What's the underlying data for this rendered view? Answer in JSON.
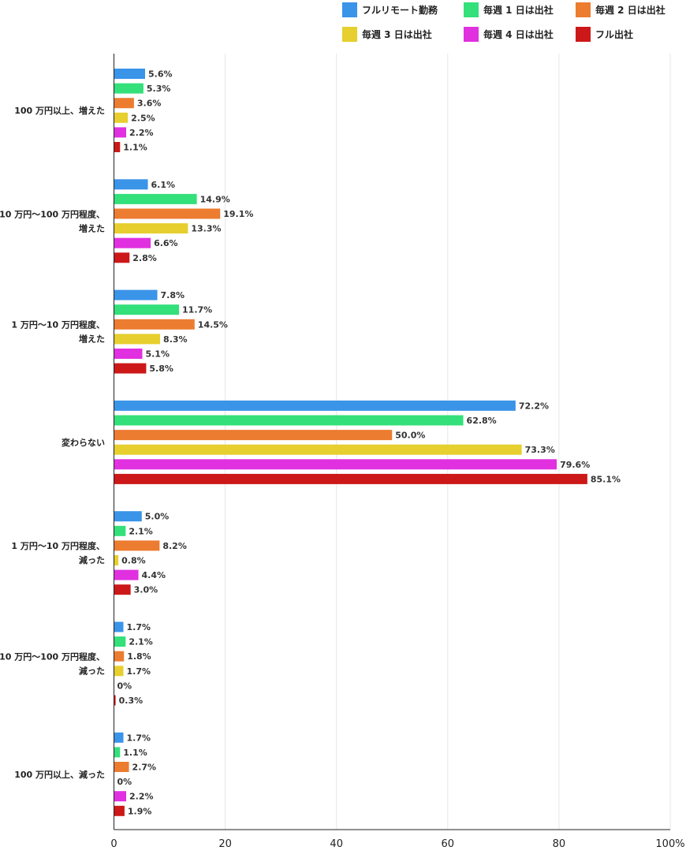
{
  "chart_data": {
    "type": "bar",
    "orientation": "horizontal",
    "categories": [
      [
        "100 万円以上、増えた"
      ],
      [
        "10 万円〜100 万円程度、",
        "増えた"
      ],
      [
        "1 万円〜10 万円程度、",
        "増えた"
      ],
      [
        "変わらない"
      ],
      [
        "1 万円〜10 万円程度、",
        "減った"
      ],
      [
        "10 万円〜100 万円程度、",
        "減った"
      ],
      [
        "100 万円以上、減った"
      ]
    ],
    "series": [
      {
        "name": "フルリモート勤務",
        "color": "#3a94e8",
        "values": [
          5.6,
          6.1,
          7.8,
          72.2,
          5.0,
          1.7,
          1.7
        ],
        "labels": [
          "5.6%",
          "6.1%",
          "7.8%",
          "72.2%",
          "5.0%",
          "1.7%",
          "1.7%"
        ]
      },
      {
        "name": "毎週 1 日は出社",
        "color": "#33e07a",
        "values": [
          5.3,
          14.9,
          11.7,
          62.8,
          2.1,
          2.1,
          1.1
        ],
        "labels": [
          "5.3%",
          "14.9%",
          "11.7%",
          "62.8%",
          "2.1%",
          "2.1%",
          "1.1%"
        ]
      },
      {
        "name": "毎週 2 日は出社",
        "color": "#ec7c30",
        "values": [
          3.6,
          19.1,
          14.5,
          50.0,
          8.2,
          1.8,
          2.7
        ],
        "labels": [
          "3.6%",
          "19.1%",
          "14.5%",
          "50.0%",
          "8.2%",
          "1.8%",
          "2.7%"
        ]
      },
      {
        "name": "毎週 3 日は出社",
        "color": "#e6cf2e",
        "values": [
          2.5,
          13.3,
          8.3,
          73.3,
          0.8,
          1.7,
          0
        ],
        "labels": [
          "2.5%",
          "13.3%",
          "8.3%",
          "73.3%",
          "0.8%",
          "1.7%",
          "0%"
        ]
      },
      {
        "name": "毎週 4 日は出社",
        "color": "#e030e0",
        "values": [
          2.2,
          6.6,
          5.1,
          79.6,
          4.4,
          0,
          2.2
        ],
        "labels": [
          "2.2%",
          "6.6%",
          "5.1%",
          "79.6%",
          "4.4%",
          "0%",
          "2.2%"
        ]
      },
      {
        "name": "フル出社",
        "color": "#cc1818",
        "values": [
          1.1,
          2.8,
          5.8,
          85.1,
          3.0,
          0.3,
          1.9
        ],
        "labels": [
          "1.1%",
          "2.8%",
          "5.8%",
          "85.1%",
          "3.0%",
          "0.3%",
          "1.9%"
        ]
      }
    ],
    "xlim": [
      0,
      100
    ],
    "xticks": [
      0,
      20,
      40,
      60,
      80,
      100
    ],
    "xtick_labels": [
      "0",
      "20",
      "40",
      "60",
      "80",
      "100%"
    ],
    "grid": true,
    "legend_position": "top-right"
  }
}
